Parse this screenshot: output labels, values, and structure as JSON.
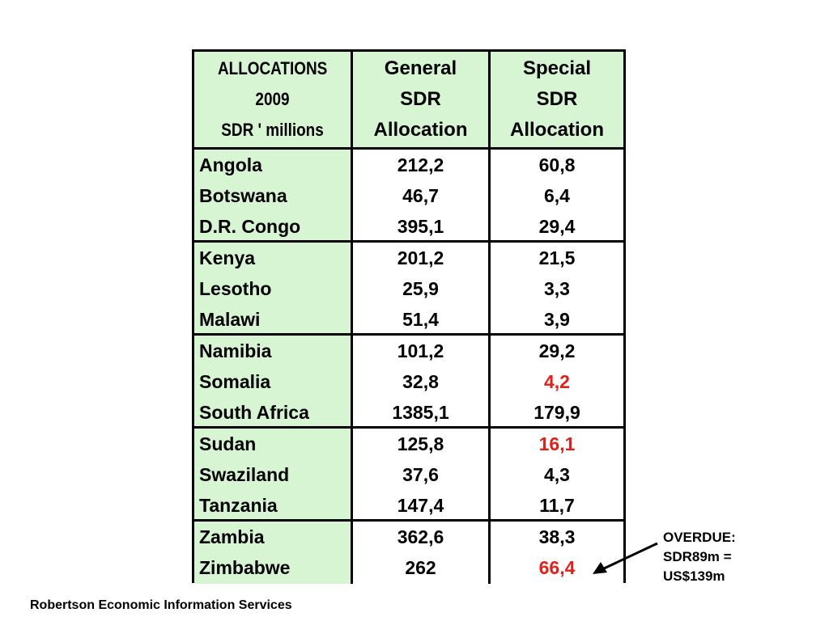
{
  "table": {
    "header": {
      "col1": [
        "ALLOCATIONS",
        "2009",
        "SDR ' millions"
      ],
      "col2": [
        "General",
        "SDR",
        "Allocation"
      ],
      "col3": [
        "Special",
        "SDR",
        "Allocation"
      ]
    },
    "groups": [
      [
        {
          "country": "Angola",
          "general": "212,2",
          "special": "60,8",
          "special_highlight": false
        },
        {
          "country": "Botswana",
          "general": "46,7",
          "special": "6,4",
          "special_highlight": false
        },
        {
          "country": "D.R. Congo",
          "general": "395,1",
          "special": "29,4",
          "special_highlight": false
        }
      ],
      [
        {
          "country": "Kenya",
          "general": "201,2",
          "special": "21,5",
          "special_highlight": false
        },
        {
          "country": "Lesotho",
          "general": "25,9",
          "special": "3,3",
          "special_highlight": false
        },
        {
          "country": "Malawi",
          "general": "51,4",
          "special": "3,9",
          "special_highlight": false
        }
      ],
      [
        {
          "country": "Namibia",
          "general": "101,2",
          "special": "29,2",
          "special_highlight": false
        },
        {
          "country": "Somalia",
          "general": "32,8",
          "special": "4,2",
          "special_highlight": true
        },
        {
          "country": "South Africa",
          "general": "1385,1",
          "special": "179,9",
          "special_highlight": false
        }
      ],
      [
        {
          "country": "Sudan",
          "general": "125,8",
          "special": "16,1",
          "special_highlight": true
        },
        {
          "country": "Swaziland",
          "general": "37,6",
          "special": "4,3",
          "special_highlight": false
        },
        {
          "country": "Tanzania",
          "general": "147,4",
          "special": "11,7",
          "special_highlight": false
        }
      ],
      [
        {
          "country": "Zambia",
          "general": "362,6",
          "special": "38,3",
          "special_highlight": false
        },
        {
          "country": "Zimbabwe",
          "general": "262",
          "special": "66,4",
          "special_highlight": true
        }
      ]
    ]
  },
  "note": {
    "lines": [
      "OVERDUE:",
      "SDR89m =",
      "US$139m"
    ]
  },
  "footer": "Robertson Economic Information Services",
  "colors": {
    "header_bg": "#d7f5d3",
    "highlight": "#e0211b"
  },
  "icons": {
    "arrow": "arrow-pointer-icon"
  }
}
